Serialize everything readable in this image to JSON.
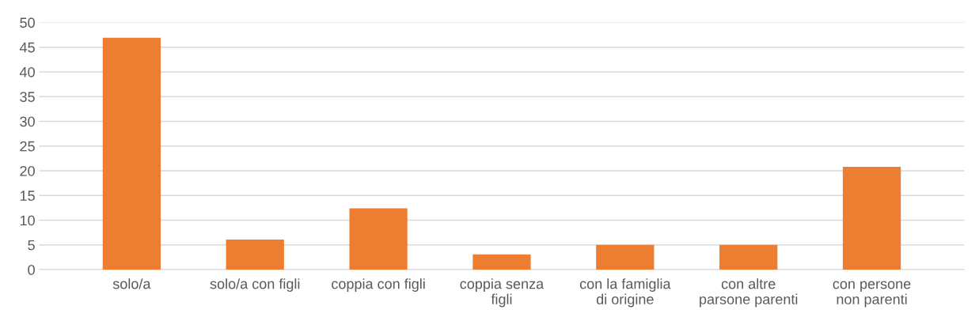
{
  "chart_data": {
    "type": "bar",
    "categories": [
      "solo/a",
      "solo/a con figli",
      "coppia con figli",
      "coppia senza\nfigli",
      "con la famiglia\ndi origine",
      "con altre\nparsone parenti",
      "con persone\nnon parenti"
    ],
    "values": [
      46.9,
      6.1,
      12.4,
      3.1,
      5.0,
      5.0,
      20.8
    ],
    "color": "#ed7d31",
    "ylim": [
      0,
      50
    ],
    "yticks": [
      0,
      5,
      10,
      15,
      20,
      25,
      30,
      35,
      40,
      45,
      50
    ],
    "grid": "y"
  }
}
